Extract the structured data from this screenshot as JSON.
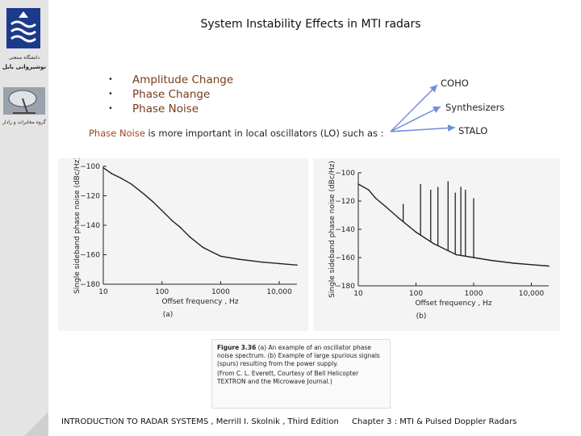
{
  "slide": {
    "title": "System Instability Effects in MTI radars",
    "bullets": [
      "Amplitude Change",
      "Phase Change",
      "Phase Noise"
    ],
    "phase_noise_highlight": "Phase Noise",
    "phase_noise_rest": " is more important in local oscillators (LO) such as :",
    "lo_types": [
      "COHO",
      "Synthesizers",
      "STALO"
    ]
  },
  "sidebar": {
    "university_text": "دانشگاه صنعتی",
    "university_name": "نوشیروانی بابل",
    "group_text": "گروه مخابرات و رادار"
  },
  "figure": {
    "caption_label": "Figure 3.36",
    "caption_text": "(a) An example of an oscillator phase noise spectrum. (b) Example of large spurious signals (spurs) resulting from the power supply.",
    "caption_source": "(From C. L. Everett, Courtesy of Bell Helicopter TEXTRON and the Microwave Journal.)",
    "panel_a_label": "(a)",
    "panel_b_label": "(b)"
  },
  "chart_data": [
    {
      "type": "line",
      "title": "(a)",
      "xlabel": "Offset frequency , Hz",
      "ylabel": "Single sideband phase noise (dBc/Hz)",
      "xscale": "log",
      "xticks": [
        "10",
        "100",
        "1000",
        "10,000"
      ],
      "yticks": [
        "-100",
        "-120",
        "-140",
        "-160",
        "-180"
      ],
      "xlim": [
        10,
        20000
      ],
      "ylim": [
        -180,
        -100
      ],
      "x": [
        10,
        14,
        20,
        30,
        50,
        70,
        100,
        150,
        200,
        300,
        500,
        700,
        1000,
        2000,
        5000,
        10000,
        20000
      ],
      "y": [
        -101,
        -105,
        -108,
        -112,
        -119,
        -124,
        -130,
        -137,
        -141,
        -148,
        -155,
        -158,
        -161,
        -163,
        -165,
        -166,
        -167
      ]
    },
    {
      "type": "line",
      "title": "(b)",
      "xlabel": "Offset frequency , Hz",
      "ylabel": "Single sideband phase noise (dBc/Hz)",
      "xscale": "log",
      "xticks": [
        "10",
        "100",
        "1000",
        "10,000"
      ],
      "yticks": [
        "-100",
        "-120",
        "-140",
        "-160",
        "-180"
      ],
      "xlim": [
        10,
        20000
      ],
      "ylim": [
        -180,
        -100
      ],
      "x": [
        10,
        15,
        20,
        30,
        50,
        100,
        200,
        500,
        1000,
        2000,
        5000,
        10000,
        20000
      ],
      "y": [
        -108,
        -112,
        -118,
        -124,
        -132,
        -142,
        -150,
        -158,
        -160,
        -162,
        -164,
        -165,
        -166
      ],
      "spurs": [
        {
          "x": 60,
          "y": -122
        },
        {
          "x": 120,
          "y": -108
        },
        {
          "x": 180,
          "y": -112
        },
        {
          "x": 240,
          "y": -110
        },
        {
          "x": 360,
          "y": -106
        },
        {
          "x": 480,
          "y": -114
        },
        {
          "x": 600,
          "y": -110
        },
        {
          "x": 720,
          "y": -112
        },
        {
          "x": 1000,
          "y": -118
        }
      ]
    }
  ],
  "footer": {
    "left": "INTRODUCTION TO RADAR SYSTEMS , Merrill I. Skolnik , Third Edition",
    "right": "Chapter 3 : MTI & Pulsed Doppler Radars"
  },
  "colors": {
    "bullet_text": "#7a3b1a",
    "highlight": "#a1441b",
    "arrow": "#6f8fd8",
    "logo_blue": "#1b3a8a"
  }
}
